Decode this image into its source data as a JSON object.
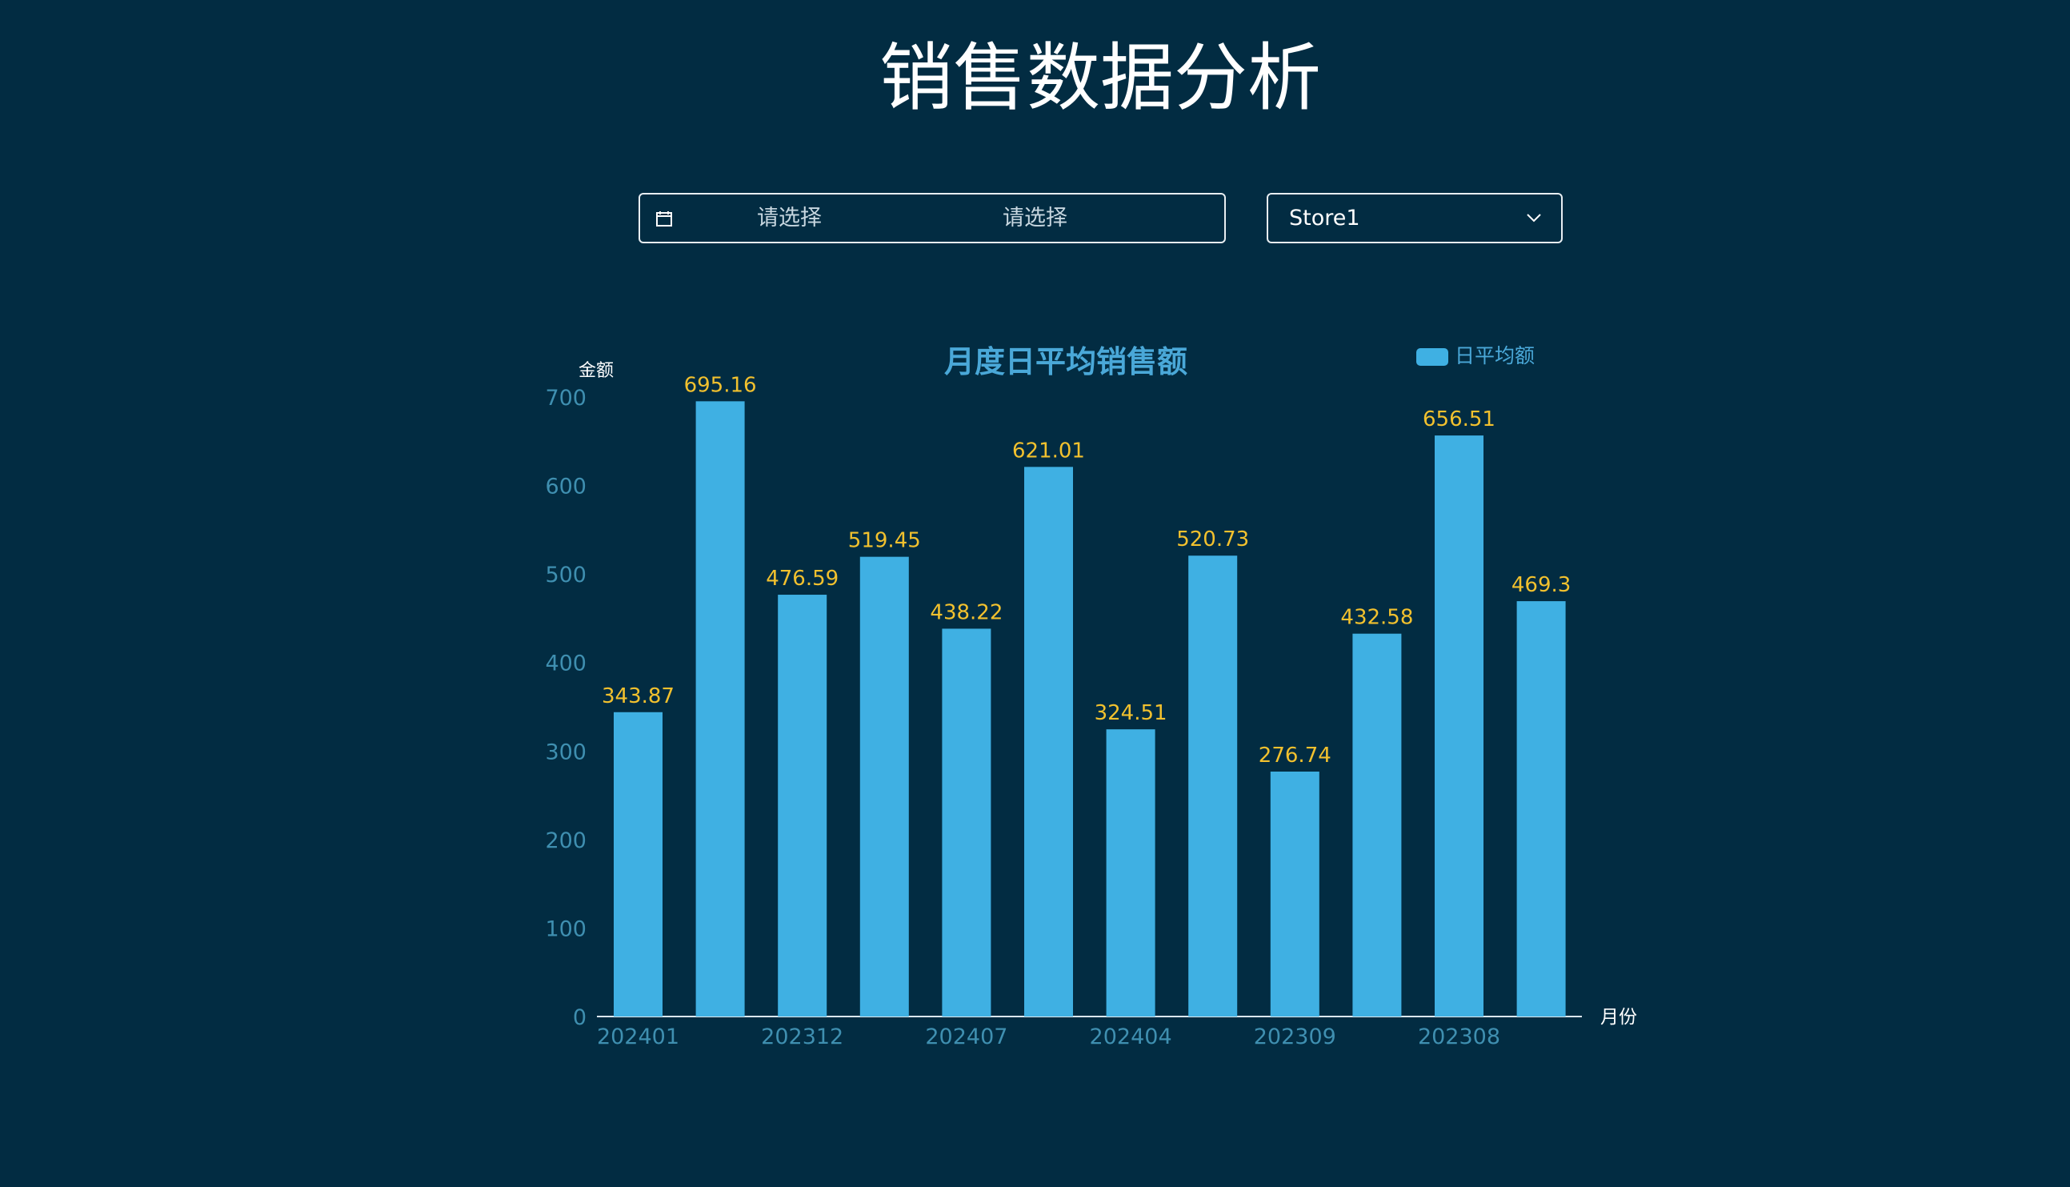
{
  "page": {
    "title": "销售数据分析"
  },
  "filters": {
    "date_range": {
      "start_placeholder": "请选择",
      "end_placeholder": "请选择"
    },
    "store": {
      "selected": "Store1"
    }
  },
  "chart_data": {
    "type": "bar",
    "title": "月度日平均销售额",
    "xlabel": "月份",
    "ylabel": "金额",
    "legend": {
      "label": "日平均额",
      "placement": "top-right"
    },
    "categories": [
      "202401",
      "",
      "202312",
      "",
      "202407",
      "",
      "202404",
      "",
      "202309",
      "",
      "202308",
      ""
    ],
    "x_tick_labels": [
      "202401",
      "202312",
      "202407",
      "202404",
      "202309",
      "202308"
    ],
    "values": [
      343.87,
      695.16,
      476.59,
      519.45,
      438.22,
      621.01,
      324.51,
      520.73,
      276.74,
      432.58,
      656.51,
      469.3
    ],
    "data_labels": [
      "343.87",
      "695.16",
      "476.59",
      "519.45",
      "438.22",
      "621.01",
      "324.51",
      "520.73",
      "276.74",
      "432.58",
      "656.51",
      "469.3"
    ],
    "ylim": [
      0,
      700
    ],
    "y_ticks": [
      "0",
      "100",
      "200",
      "300",
      "400",
      "500",
      "600",
      "700"
    ],
    "grid": false,
    "colors": {
      "bar": "#3fb0e3",
      "data_label": "#f2c12e",
      "axis_text": "#3f8fb0",
      "title": "#4aa8d8"
    }
  }
}
